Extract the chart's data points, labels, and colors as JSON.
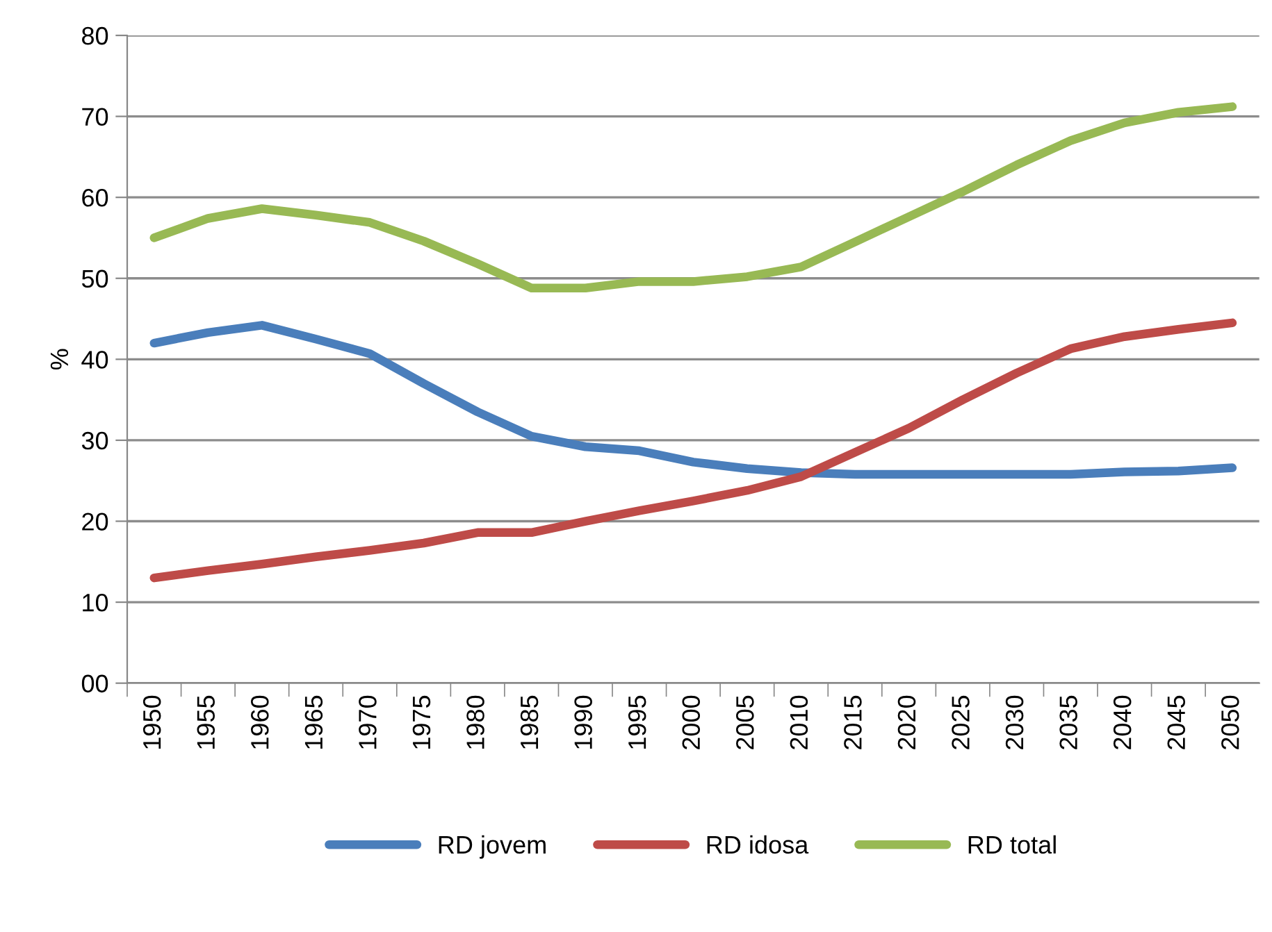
{
  "chart_data": {
    "type": "line",
    "ylabel": "%",
    "categories": [
      "1950",
      "1955",
      "1960",
      "1965",
      "1970",
      "1975",
      "1980",
      "1985",
      "1990",
      "1995",
      "2000",
      "2005",
      "2010",
      "2015",
      "2020",
      "2025",
      "2030",
      "2035",
      "2040",
      "2045",
      "2050"
    ],
    "series": [
      {
        "name": "RD jovem",
        "color": "#4a7ebb",
        "values": [
          42,
          43.3,
          44.2,
          42.5,
          40.7,
          37,
          33.5,
          30.5,
          29.2,
          28.7,
          27.3,
          26.5,
          26,
          25.8,
          25.8,
          25.8,
          25.8,
          25.8,
          26.1,
          26.2,
          26.6
        ]
      },
      {
        "name": "RD idosa",
        "color": "#be4b48",
        "values": [
          13,
          13.9,
          14.7,
          15.6,
          16.4,
          17.3,
          18.6,
          18.6,
          20,
          21.3,
          22.5,
          23.8,
          25.5,
          28.5,
          31.5,
          35,
          38.3,
          41.3,
          42.8,
          43.7,
          44.5
        ]
      },
      {
        "name": "RD total",
        "color": "#98b954",
        "values": [
          55,
          57.4,
          58.6,
          57.8,
          56.9,
          54.6,
          51.8,
          48.8,
          48.8,
          49.6,
          49.6,
          50.2,
          51.4,
          54.5,
          57.6,
          60.7,
          64,
          67,
          69.2,
          70.5,
          71.2
        ]
      }
    ],
    "ylim": [
      0,
      80
    ],
    "yticks": [
      {
        "value": 0,
        "label": "00"
      },
      10,
      20,
      30,
      40,
      50,
      60,
      70,
      80
    ],
    "grid": "y",
    "legend": "bottom",
    "marker": "none",
    "line_style": "solid"
  }
}
